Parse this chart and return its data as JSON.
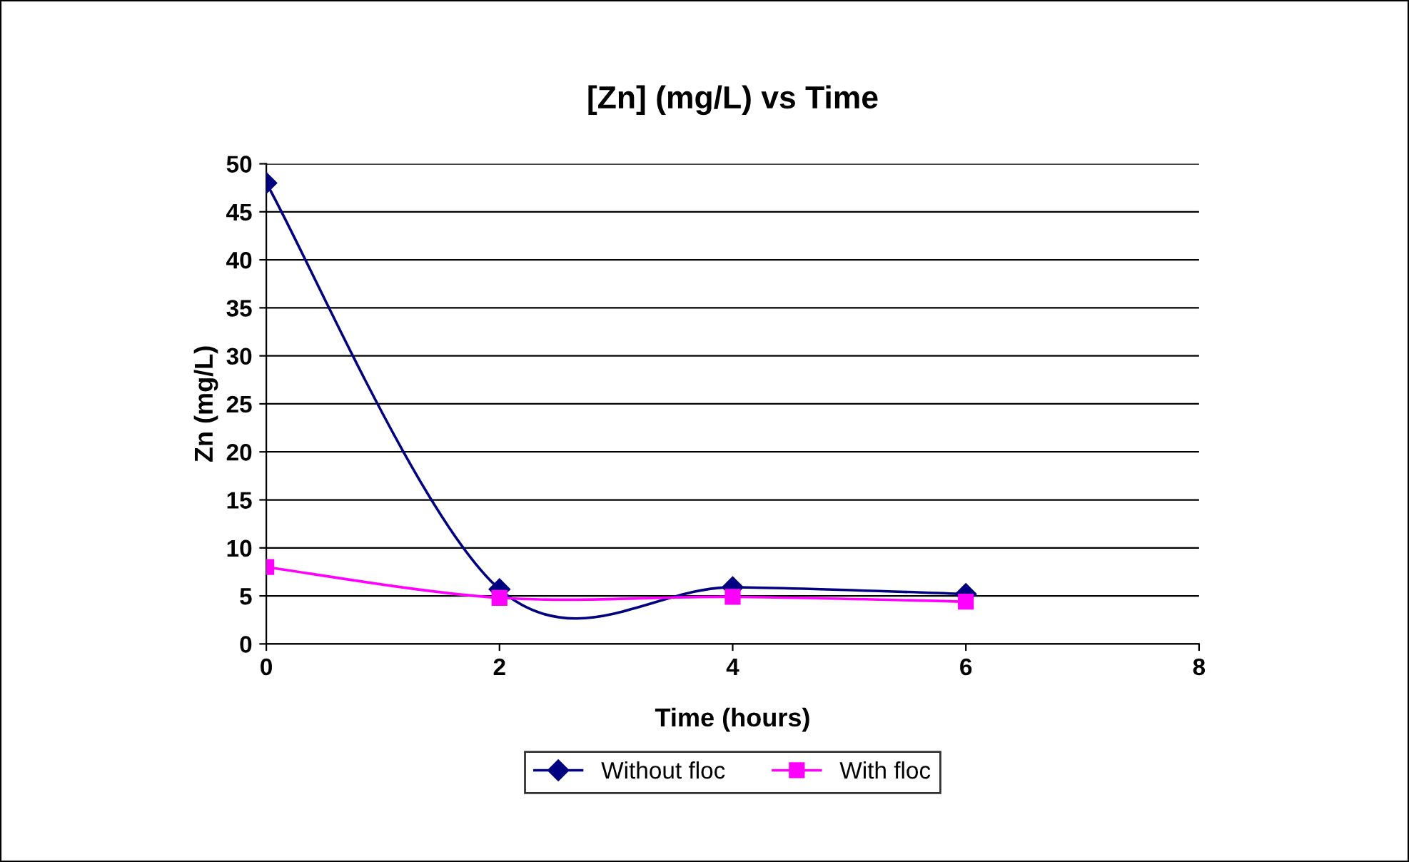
{
  "chart_data": {
    "type": "line",
    "title": "[Zn] (mg/L) vs Time",
    "xlabel": "Time (hours)",
    "ylabel": "Zn (mg/L)",
    "x": [
      0,
      2,
      4,
      6
    ],
    "series": [
      {
        "name": "Without floc",
        "color": "#000080",
        "marker": "diamond",
        "values": [
          48,
          5.7,
          5.9,
          5.2
        ]
      },
      {
        "name": "With floc",
        "color": "#ff00ff",
        "marker": "square",
        "values": [
          8,
          4.8,
          4.9,
          4.4
        ]
      }
    ],
    "xlim": [
      0,
      8
    ],
    "xticks": [
      0,
      2,
      4,
      6,
      8
    ],
    "ylim": [
      0,
      50
    ],
    "yticks": [
      0,
      5,
      10,
      15,
      20,
      25,
      30,
      35,
      40,
      45,
      50
    ],
    "grid": "y",
    "legend": "bottom",
    "line_style": "solid"
  }
}
